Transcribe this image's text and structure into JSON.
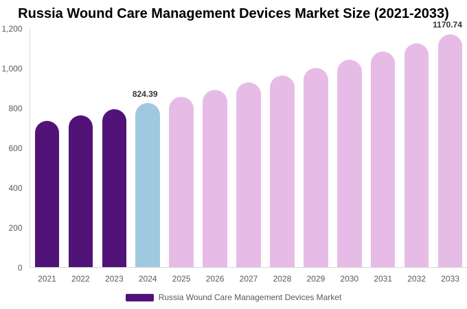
{
  "title": "Russia Wound Care Management Devices Market Size (2021-2033)",
  "legend": {
    "items": [
      {
        "label": "Russia Wound Care Management Devices Market",
        "color": "#521378"
      }
    ],
    "position": "bottom"
  },
  "colors": {
    "historical_bar": "#521378",
    "current_year_bar": "#a0c9e0",
    "forecast_bar": "#e6bce7",
    "axis_line": "#d9d9d9",
    "tick_label": "#595959",
    "value_label": "#333333",
    "title": "#000000",
    "background": "#ffffff"
  },
  "chart_data": {
    "type": "bar",
    "title": "Russia Wound Care Management Devices Market Size (2021-2033)",
    "xlabel": "",
    "ylabel": "",
    "categories": [
      "2021",
      "2022",
      "2023",
      "2024",
      "2025",
      "2026",
      "2027",
      "2028",
      "2029",
      "2030",
      "2031",
      "2032",
      "2033"
    ],
    "values": [
      733.43,
      762.58,
      792.88,
      824.39,
      857.15,
      891.22,
      926.64,
      963.47,
      1001.76,
      1041.58,
      1082.98,
      1126.02,
      1170.74
    ],
    "bar_colors": [
      "#521378",
      "#521378",
      "#521378",
      "#a0c9e0",
      "#e6bce7",
      "#e6bce7",
      "#e6bce7",
      "#e6bce7",
      "#e6bce7",
      "#e6bce7",
      "#e6bce7",
      "#e6bce7",
      "#e6bce7"
    ],
    "value_labels": [
      "",
      "",
      "",
      "824.39",
      "",
      "",
      "",
      "",
      "",
      "",
      "",
      "",
      "1170.74"
    ],
    "ylim": [
      0,
      1200
    ],
    "yticks": [
      0,
      200,
      400,
      600,
      800,
      1000,
      1200
    ],
    "ytick_labels": [
      "0",
      "200",
      "400",
      "600",
      "800",
      "1,000",
      "1,200"
    ],
    "grid": false,
    "legend_position": "bottom"
  }
}
